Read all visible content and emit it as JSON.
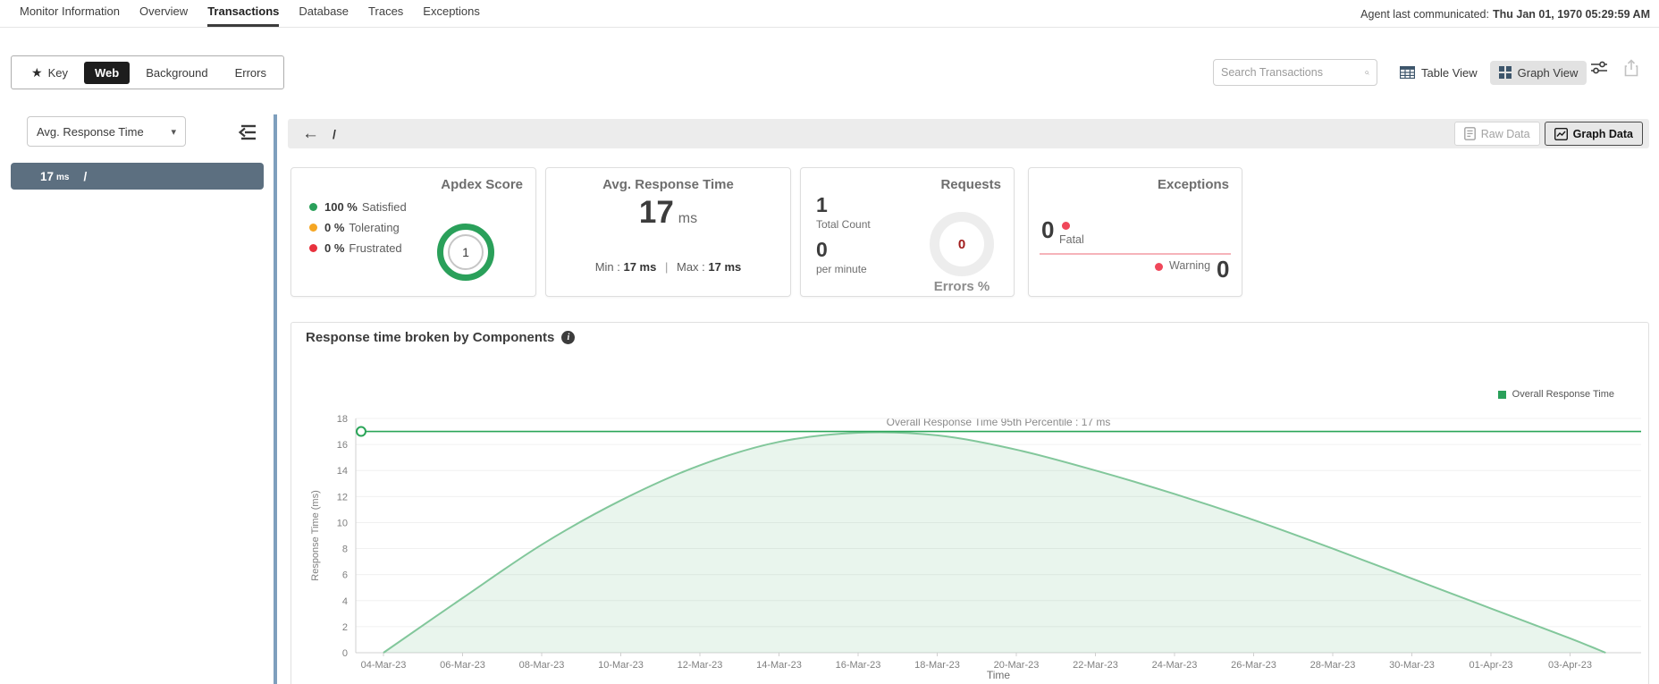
{
  "icons": {
    "star": "★",
    "caret": "▾",
    "back_arrow": "←",
    "info": "i"
  },
  "top_nav": {
    "items": [
      "Monitor Information",
      "Overview",
      "Transactions",
      "Database",
      "Traces",
      "Exceptions"
    ],
    "active": "Transactions",
    "agent_label": "Agent last communicated:",
    "agent_time": "Thu Jan 01, 1970 05:29:59 AM"
  },
  "toolbar": {
    "tab_key": "Key",
    "tab_web": "Web",
    "tab_background": "Background",
    "tab_errors": "Errors",
    "active_tab": "Web",
    "search_placeholder": "Search Transactions",
    "table_view_label": "Table View",
    "graph_view_label": "Graph View"
  },
  "sidebar": {
    "metric_dropdown_value": "Avg. Response Time",
    "selected_row": {
      "value": "17",
      "unit": "ms",
      "name": "/"
    }
  },
  "main": {
    "breadcrumb": "/",
    "raw_data_label": "Raw Data",
    "graph_data_label": "Graph Data",
    "cards": {
      "apdex": {
        "title": "Apdex Score",
        "rows": [
          {
            "pct": "100 %",
            "label": "Satisfied",
            "color": "#2aa05a"
          },
          {
            "pct": "0 %",
            "label": "Tolerating",
            "color": "#f5a623"
          },
          {
            "pct": "0 %",
            "label": "Frustrated",
            "color": "#e8313d"
          }
        ],
        "score": "1"
      },
      "avg_response": {
        "title": "Avg. Response Time",
        "value": "17",
        "unit": "ms",
        "min_label": "Min :",
        "min_value": "17 ms",
        "sep": "|",
        "max_label": "Max :",
        "max_value": "17 ms"
      },
      "requests": {
        "title": "Requests",
        "total_value": "1",
        "total_label": "Total Count",
        "per_min_value": "0",
        "per_min_label": "per minute",
        "errors_value": "0",
        "errors_label": "Errors %"
      },
      "exceptions": {
        "title": "Exceptions",
        "fatal_value": "0",
        "fatal_label": "Fatal",
        "warning_label": "Warning",
        "warning_value": "0"
      }
    }
  },
  "chart_data": {
    "type": "area",
    "title": "Response time broken by Components",
    "xlabel": "Time",
    "ylabel": "Response Time (ms)",
    "ylim": [
      0,
      18
    ],
    "ytick_step": 2,
    "grid": true,
    "legend_position": "top-right",
    "categories": [
      "04-Mar-23",
      "06-Mar-23",
      "08-Mar-23",
      "10-Mar-23",
      "12-Mar-23",
      "14-Mar-23",
      "16-Mar-23",
      "18-Mar-23",
      "20-Mar-23",
      "22-Mar-23",
      "24-Mar-23",
      "26-Mar-23",
      "28-Mar-23",
      "30-Mar-23",
      "01-Apr-23",
      "03-Apr-23"
    ],
    "series": [
      {
        "name": "Overall Response Time",
        "color": "#82c79b",
        "fill": "rgba(133,199,156,0.18)",
        "values": [
          0,
          4.2,
          8.3,
          11.7,
          14.4,
          16.2,
          16.9,
          16.7,
          15.6,
          14.0,
          12.2,
          10.2,
          8.0,
          5.7,
          3.4,
          1.1
        ]
      }
    ],
    "curve_end": {
      "index_offset": 15.45,
      "value": 0
    },
    "percentile_line": {
      "label": "Overall Response Time 95th Percentile : 17 ms",
      "value": 17,
      "color": "#2aa558"
    },
    "legend_label": "Overall Response Time",
    "legend_color": "#2aa05a",
    "axis_color": "#d0d0d0",
    "grid_color": "#f0f0f0",
    "tick_label_color": "#7f7f7f"
  }
}
